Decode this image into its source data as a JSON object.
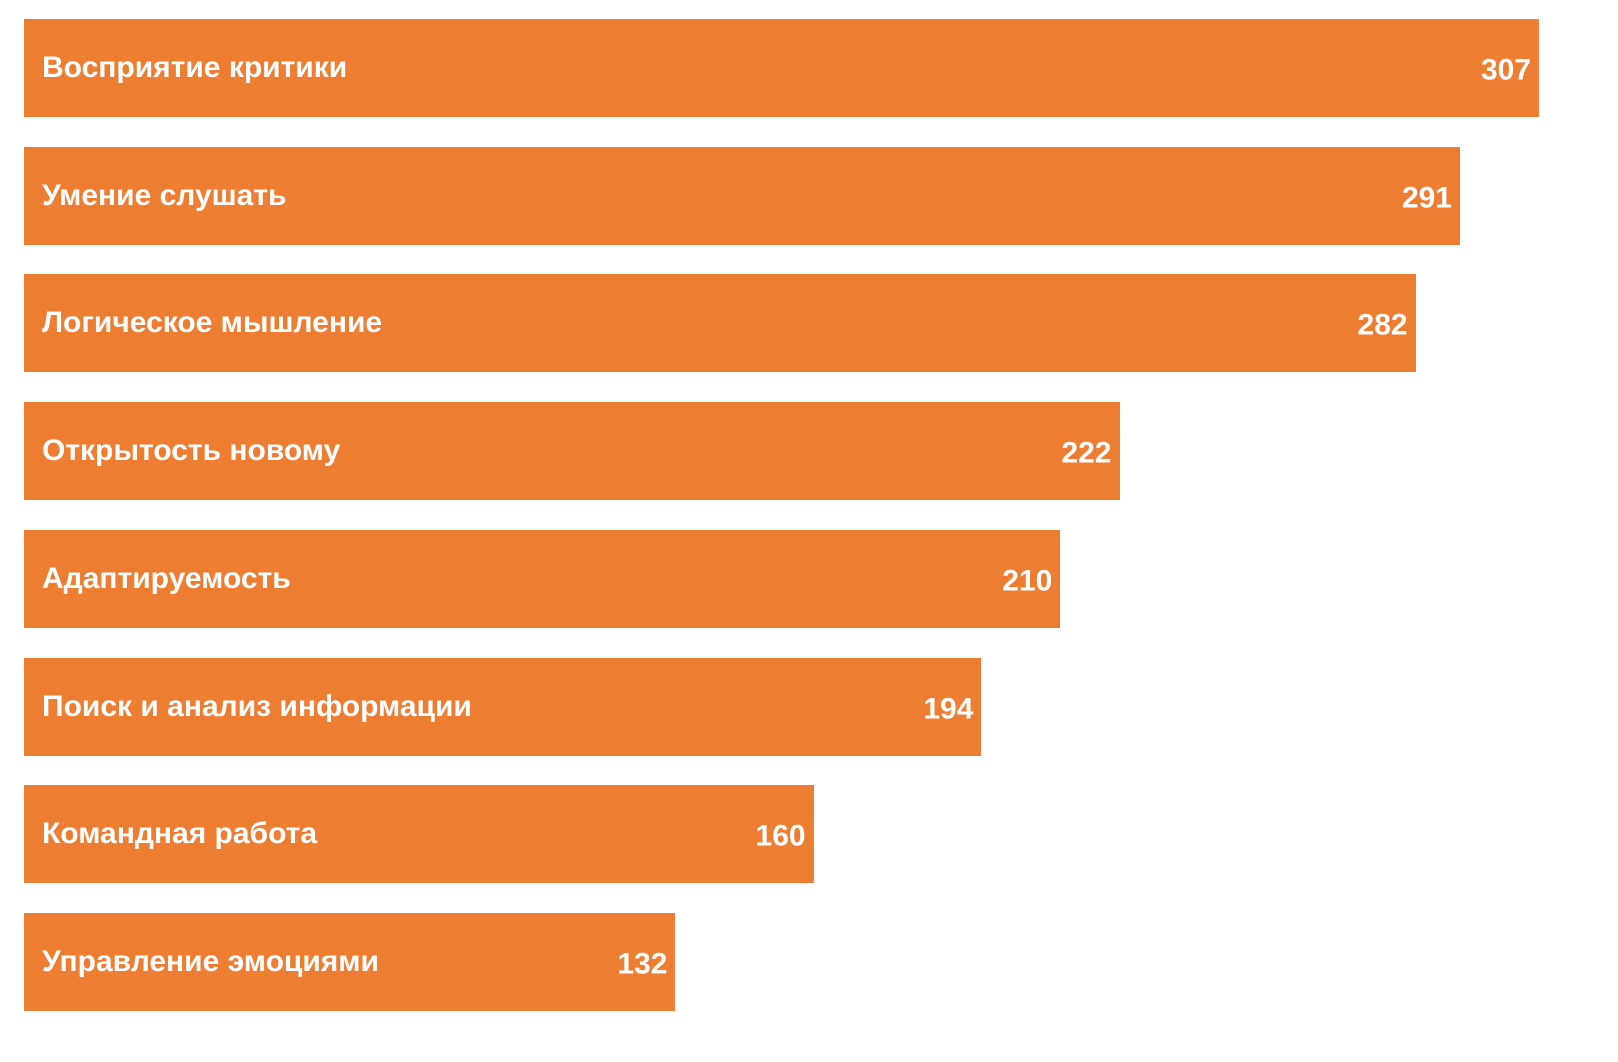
{
  "chart_data": {
    "type": "bar",
    "orientation": "horizontal",
    "categories": [
      "Восприятие критики",
      "Умение слушать",
      "Логическое мышление",
      "Открытость новому",
      "Адаптируемость",
      "Поиск и анализ информации",
      "Командная работа",
      "Управление эмоциями"
    ],
    "values": [
      307,
      291,
      282,
      222,
      210,
      194,
      160,
      132
    ],
    "xlim": [
      0,
      307
    ],
    "grid": false,
    "legend": "none",
    "bar_color": "#ED7D31",
    "label_color": "#FFFFFF"
  }
}
